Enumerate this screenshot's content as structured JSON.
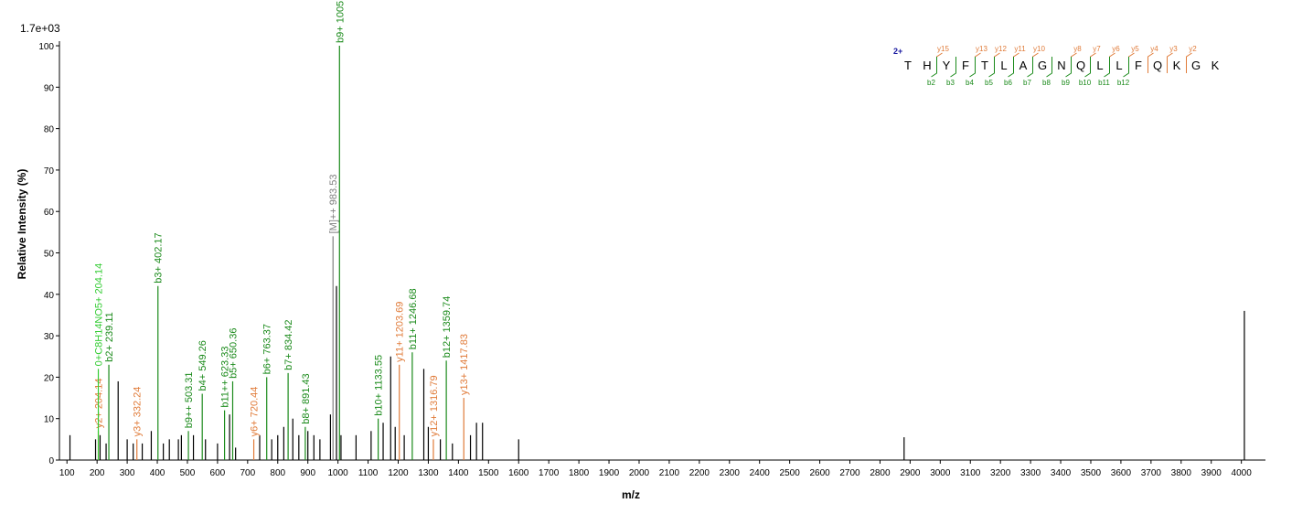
{
  "chart_data": {
    "type": "spectrum",
    "scale_label": "1.7e+03",
    "x_label": "m/z",
    "y_label": "Relative Intensity (%)",
    "xlim": [
      75,
      4080
    ],
    "ylim": [
      0,
      101
    ],
    "xticks": [
      100,
      200,
      300,
      400,
      500,
      600,
      700,
      800,
      900,
      1000,
      1100,
      1200,
      1300,
      1400,
      1500,
      1600,
      1700,
      1800,
      1900,
      2000,
      2100,
      2200,
      2300,
      2400,
      2500,
      2600,
      2700,
      2800,
      2900,
      3000,
      3100,
      3200,
      3300,
      3400,
      3500,
      3600,
      3700,
      3800,
      3900,
      4000
    ],
    "yticks": [
      0,
      10,
      20,
      30,
      40,
      50,
      60,
      70,
      80,
      90,
      100
    ],
    "peak_color": "#000000",
    "peaks": {
      "x": [
        110,
        195,
        210,
        230,
        270,
        300,
        320,
        350,
        380,
        420,
        440,
        470,
        480,
        520,
        560,
        600,
        640,
        660,
        740,
        780,
        800,
        820,
        850,
        870,
        900,
        920,
        940,
        975,
        995,
        1010,
        1060,
        1110,
        1150,
        1175,
        1190,
        1220,
        1285,
        1300,
        1340,
        1380,
        1440,
        1460,
        1480,
        1600,
        2880,
        4010
      ],
      "values": [
        6,
        5,
        6,
        4,
        19,
        5,
        4,
        4,
        7,
        4,
        5,
        5,
        6,
        6,
        5,
        4,
        11,
        3,
        6,
        5,
        6,
        8,
        10,
        6,
        7,
        6,
        5,
        11,
        42,
        6,
        6,
        7,
        9,
        25,
        8,
        6,
        22,
        8,
        5,
        4,
        6,
        9,
        9,
        5,
        5.5,
        36
      ]
    },
    "annotated": [
      {
        "label": "y2+",
        "x": 204.14,
        "value": 7,
        "color": "#e07b39"
      },
      {
        "label": "0+C8H14NO5+",
        "x": 204.14,
        "value": 22,
        "color": "#33cc33"
      },
      {
        "label": "b2+",
        "x": 239.11,
        "value": 23,
        "color": "#1a8a1a"
      },
      {
        "label": "y3+",
        "x": 332.24,
        "value": 5,
        "color": "#e07b39"
      },
      {
        "label": "b3+",
        "x": 402.17,
        "value": 42,
        "color": "#1a8a1a"
      },
      {
        "label": "b9++",
        "x": 503.31,
        "value": 7,
        "color": "#1a8a1a"
      },
      {
        "label": "b4+",
        "x": 549.26,
        "value": 16,
        "color": "#1a8a1a"
      },
      {
        "label": "b11++",
        "x": 623.33,
        "value": 12,
        "color": "#1a8a1a"
      },
      {
        "label": "b5+",
        "x": 650.36,
        "value": 19,
        "color": "#1a8a1a"
      },
      {
        "label": "y6+",
        "x": 720.44,
        "value": 5,
        "color": "#e07b39"
      },
      {
        "label": "b6+",
        "x": 763.37,
        "value": 20,
        "color": "#1a8a1a"
      },
      {
        "label": "b7+",
        "x": 834.42,
        "value": 21,
        "color": "#1a8a1a"
      },
      {
        "label": "b8+",
        "x": 891.43,
        "value": 8,
        "color": "#1a8a1a"
      },
      {
        "label": "[M]++",
        "x": 983.53,
        "value": 54,
        "color": "#808080"
      },
      {
        "label": "b9+",
        "x": 1005.03,
        "value": 100,
        "color": "#1a8a1a"
      },
      {
        "label": "b10+",
        "x": 1133.55,
        "value": 10,
        "color": "#1a8a1a"
      },
      {
        "label": "y11+",
        "x": 1203.69,
        "value": 23,
        "color": "#e07b39"
      },
      {
        "label": "b11+",
        "x": 1246.68,
        "value": 26,
        "color": "#1a8a1a"
      },
      {
        "label": "y12+",
        "x": 1316.79,
        "value": 5,
        "color": "#e07b39"
      },
      {
        "label": "b12+",
        "x": 1359.74,
        "value": 24,
        "color": "#1a8a1a"
      },
      {
        "label": "y13+",
        "x": 1417.83,
        "value": 15,
        "color": "#e07b39"
      }
    ]
  },
  "sequence": {
    "charge": "2+",
    "residues": [
      "T",
      "H",
      "Y",
      "F",
      "T",
      "L",
      "A",
      "G",
      "N",
      "Q",
      "L",
      "L",
      "F",
      "Q",
      "K",
      "G",
      "K"
    ],
    "y_ions": [
      null,
      "y15",
      null,
      "y13",
      "y12",
      "y11",
      "y10",
      null,
      "y8",
      "y7",
      "y6",
      "y5",
      "y4",
      "y3",
      "y2",
      null
    ],
    "b_ions": [
      null,
      "b2",
      "b3",
      "b4",
      "b5",
      "b6",
      "b7",
      "b8",
      "b9",
      "b10",
      "b11",
      "b12",
      null,
      null,
      null,
      null
    ]
  }
}
